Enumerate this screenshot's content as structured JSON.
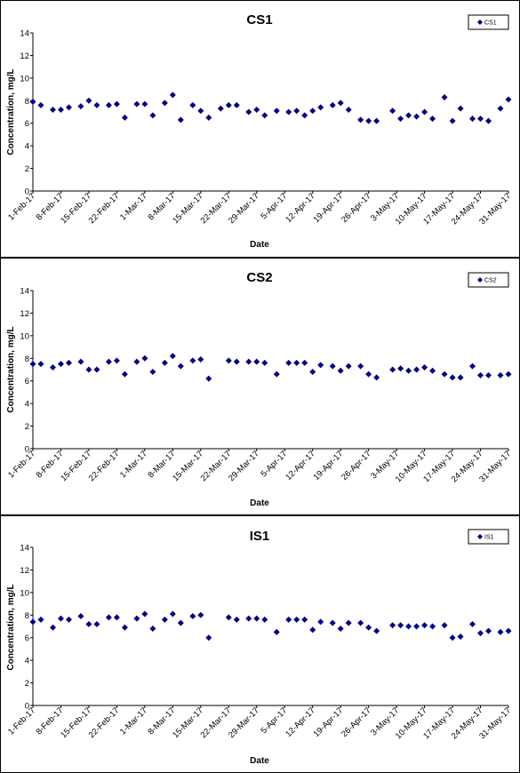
{
  "chart_data": [
    {
      "type": "scatter",
      "title": "CS1",
      "xlabel": "Date",
      "ylabel": "Concentration, mg/L",
      "ylim": [
        0,
        14
      ],
      "yticks": [
        0,
        2,
        4,
        6,
        8,
        10,
        12,
        14
      ],
      "xlim": [
        "2017-02-01",
        "2017-05-31"
      ],
      "xtick_labels": [
        "1-Feb-17",
        "8-Feb-17",
        "15-Feb-17",
        "22-Feb-17",
        "1-Mar-17",
        "8-Mar-17",
        "15-Mar-17",
        "22-Mar-17",
        "29-Mar-17",
        "5-Apr-17",
        "12-Apr-17",
        "19-Apr-17",
        "26-Apr-17",
        "3-May-17",
        "10-May-17",
        "17-May-17",
        "24-May-17",
        "31-May-17"
      ],
      "legend_position": "top-right",
      "grid": false,
      "series": [
        {
          "name": "CS1",
          "color": "#000080",
          "x": [
            "2017-02-01",
            "2017-02-03",
            "2017-02-06",
            "2017-02-08",
            "2017-02-10",
            "2017-02-13",
            "2017-02-15",
            "2017-02-17",
            "2017-02-20",
            "2017-02-22",
            "2017-02-24",
            "2017-02-27",
            "2017-03-01",
            "2017-03-03",
            "2017-03-06",
            "2017-03-08",
            "2017-03-10",
            "2017-03-13",
            "2017-03-15",
            "2017-03-17",
            "2017-03-20",
            "2017-03-22",
            "2017-03-24",
            "2017-03-27",
            "2017-03-29",
            "2017-03-31",
            "2017-04-03",
            "2017-04-06",
            "2017-04-08",
            "2017-04-10",
            "2017-04-12",
            "2017-04-14",
            "2017-04-17",
            "2017-04-19",
            "2017-04-21",
            "2017-04-24",
            "2017-04-26",
            "2017-04-28",
            "2017-05-02",
            "2017-05-04",
            "2017-05-06",
            "2017-05-08",
            "2017-05-10",
            "2017-05-12",
            "2017-05-15",
            "2017-05-17",
            "2017-05-19",
            "2017-05-22",
            "2017-05-24",
            "2017-05-26",
            "2017-05-29",
            "2017-05-31"
          ],
          "y": [
            7.9,
            7.6,
            7.2,
            7.2,
            7.4,
            7.5,
            8.0,
            7.6,
            7.6,
            7.7,
            6.5,
            7.7,
            7.7,
            6.7,
            7.8,
            8.5,
            6.3,
            7.6,
            7.1,
            6.5,
            7.3,
            7.6,
            7.6,
            7.0,
            7.2,
            6.7,
            7.1,
            7.0,
            7.1,
            6.7,
            7.1,
            7.4,
            7.6,
            7.8,
            7.2,
            6.3,
            6.2,
            6.2,
            7.1,
            6.4,
            6.7,
            6.6,
            7.0,
            6.4,
            8.3,
            6.2,
            7.3,
            6.4,
            6.4,
            6.2,
            7.3,
            8.1
          ]
        }
      ]
    },
    {
      "type": "scatter",
      "title": "CS2",
      "xlabel": "Date",
      "ylabel": "Concentration, mg/L",
      "ylim": [
        0,
        14
      ],
      "yticks": [
        0,
        2,
        4,
        6,
        8,
        10,
        12,
        14
      ],
      "xlim": [
        "2017-02-01",
        "2017-05-31"
      ],
      "xtick_labels": [
        "1-Feb-17",
        "8-Feb-17",
        "15-Feb-17",
        "22-Feb-17",
        "1-Mar-17",
        "8-Mar-17",
        "15-Mar-17",
        "22-Mar-17",
        "29-Mar-17",
        "5-Apr-17",
        "12-Apr-17",
        "19-Apr-17",
        "26-Apr-17",
        "3-May-17",
        "10-May-17",
        "17-May-17",
        "24-May-17",
        "31-May-17"
      ],
      "legend_position": "top-right",
      "grid": false,
      "series": [
        {
          "name": "CS2",
          "color": "#000080",
          "x": [
            "2017-02-01",
            "2017-02-03",
            "2017-02-06",
            "2017-02-08",
            "2017-02-10",
            "2017-02-13",
            "2017-02-15",
            "2017-02-17",
            "2017-02-20",
            "2017-02-22",
            "2017-02-24",
            "2017-02-27",
            "2017-03-01",
            "2017-03-03",
            "2017-03-06",
            "2017-03-08",
            "2017-03-10",
            "2017-03-13",
            "2017-03-15",
            "2017-03-17",
            "2017-03-22",
            "2017-03-24",
            "2017-03-27",
            "2017-03-29",
            "2017-03-31",
            "2017-04-03",
            "2017-04-06",
            "2017-04-08",
            "2017-04-10",
            "2017-04-12",
            "2017-04-14",
            "2017-04-17",
            "2017-04-19",
            "2017-04-21",
            "2017-04-24",
            "2017-04-26",
            "2017-04-28",
            "2017-05-02",
            "2017-05-04",
            "2017-05-06",
            "2017-05-08",
            "2017-05-10",
            "2017-05-12",
            "2017-05-15",
            "2017-05-17",
            "2017-05-19",
            "2017-05-22",
            "2017-05-24",
            "2017-05-26",
            "2017-05-29",
            "2017-05-31"
          ],
          "y": [
            7.5,
            7.5,
            7.2,
            7.5,
            7.6,
            7.7,
            7.0,
            7.0,
            7.7,
            7.8,
            6.6,
            7.7,
            8.0,
            6.8,
            7.6,
            8.2,
            7.3,
            7.8,
            7.9,
            6.2,
            7.8,
            7.7,
            7.7,
            7.7,
            7.6,
            6.6,
            7.6,
            7.6,
            7.6,
            6.8,
            7.4,
            7.3,
            6.9,
            7.3,
            7.3,
            6.6,
            6.3,
            7.0,
            7.1,
            6.9,
            7.0,
            7.2,
            6.9,
            6.6,
            6.3,
            6.3,
            7.3,
            6.5,
            6.5,
            6.5,
            6.6
          ]
        }
      ]
    },
    {
      "type": "scatter",
      "title": "IS1",
      "xlabel": "Date",
      "ylabel": "Concentration, mg/L",
      "ylim": [
        0,
        14
      ],
      "yticks": [
        0,
        2,
        4,
        6,
        8,
        10,
        12,
        14
      ],
      "xlim": [
        "2017-02-01",
        "2017-05-31"
      ],
      "xtick_labels": [
        "1-Feb-17",
        "8-Feb-17",
        "15-Feb-17",
        "22-Feb-17",
        "1-Mar-17",
        "8-Mar-17",
        "15-Mar-17",
        "22-Mar-17",
        "29-Mar-17",
        "5-Apr-17",
        "12-Apr-17",
        "19-Apr-17",
        "26-Apr-17",
        "3-May-17",
        "10-May-17",
        "17-May-17",
        "24-May-17",
        "31-May-17"
      ],
      "legend_position": "top-right",
      "grid": false,
      "series": [
        {
          "name": "IS1",
          "color": "#000080",
          "x": [
            "2017-02-01",
            "2017-02-03",
            "2017-02-06",
            "2017-02-08",
            "2017-02-10",
            "2017-02-13",
            "2017-02-15",
            "2017-02-17",
            "2017-02-20",
            "2017-02-22",
            "2017-02-24",
            "2017-02-27",
            "2017-03-01",
            "2017-03-03",
            "2017-03-06",
            "2017-03-08",
            "2017-03-10",
            "2017-03-13",
            "2017-03-15",
            "2017-03-17",
            "2017-03-22",
            "2017-03-24",
            "2017-03-27",
            "2017-03-29",
            "2017-03-31",
            "2017-04-03",
            "2017-04-06",
            "2017-04-08",
            "2017-04-10",
            "2017-04-12",
            "2017-04-14",
            "2017-04-17",
            "2017-04-19",
            "2017-04-21",
            "2017-04-24",
            "2017-04-26",
            "2017-04-28",
            "2017-05-02",
            "2017-05-04",
            "2017-05-06",
            "2017-05-08",
            "2017-05-10",
            "2017-05-12",
            "2017-05-15",
            "2017-05-17",
            "2017-05-19",
            "2017-05-22",
            "2017-05-24",
            "2017-05-26",
            "2017-05-29",
            "2017-05-31"
          ],
          "y": [
            7.4,
            7.6,
            6.9,
            7.7,
            7.6,
            7.9,
            7.2,
            7.2,
            7.8,
            7.8,
            6.9,
            7.7,
            8.1,
            6.8,
            7.6,
            8.1,
            7.3,
            7.9,
            8.0,
            6.0,
            7.8,
            7.6,
            7.7,
            7.7,
            7.6,
            6.5,
            7.6,
            7.6,
            7.6,
            6.7,
            7.4,
            7.3,
            6.8,
            7.3,
            7.3,
            6.9,
            6.6,
            7.1,
            7.1,
            7.0,
            7.0,
            7.1,
            7.0,
            7.1,
            6.0,
            6.1,
            7.2,
            6.4,
            6.6,
            6.5,
            6.6
          ]
        }
      ]
    }
  ]
}
